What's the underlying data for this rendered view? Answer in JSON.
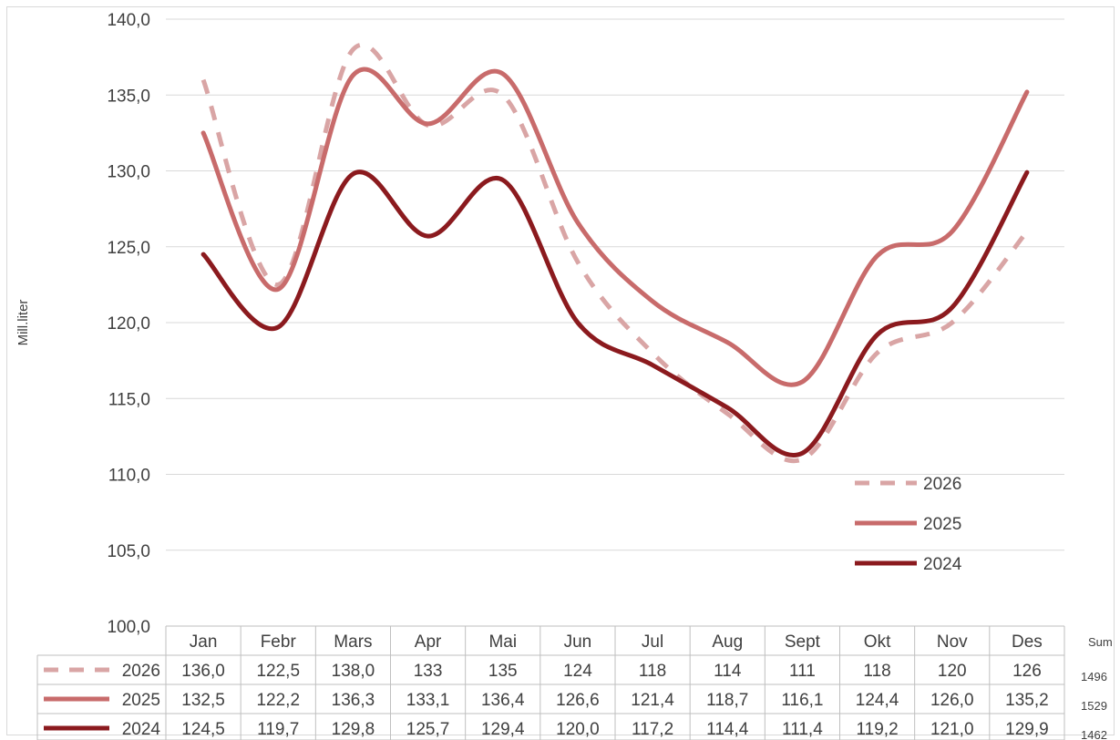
{
  "chart_data": {
    "type": "line",
    "ylabel": "Mill.liter",
    "ylim": [
      100,
      140
    ],
    "ytick_step": 5,
    "ytick_labels": [
      "100,0",
      "105,0",
      "110,0",
      "115,0",
      "120,0",
      "125,0",
      "130,0",
      "135,0",
      "140,0"
    ],
    "categories": [
      "Jan",
      "Febr",
      "Mars",
      "Apr",
      "Mai",
      "Jun",
      "Jul",
      "Aug",
      "Sept",
      "Okt",
      "Nov",
      "Des"
    ],
    "grid": true,
    "legend_position": "bottom-right",
    "sum_header": "Sum",
    "series": [
      {
        "name": "2026",
        "style": "dashed",
        "color": "#d9a5a5",
        "values": [
          136.0,
          122.5,
          138.0,
          133,
          135,
          124,
          118,
          114,
          111,
          118,
          120,
          126
        ],
        "labels": [
          "136,0",
          "122,5",
          "138,0",
          "133",
          "135",
          "124",
          "118",
          "114",
          "111",
          "118",
          "120",
          "126"
        ],
        "sum": "1496"
      },
      {
        "name": "2025",
        "style": "solid",
        "color": "#c86b6b",
        "values": [
          132.5,
          122.2,
          136.3,
          133.1,
          136.4,
          126.6,
          121.4,
          118.7,
          116.1,
          124.4,
          126.0,
          135.2
        ],
        "labels": [
          "132,5",
          "122,2",
          "136,3",
          "133,1",
          "136,4",
          "126,6",
          "121,4",
          "118,7",
          "116,1",
          "124,4",
          "126,0",
          "135,2"
        ],
        "sum": "1529"
      },
      {
        "name": "2024",
        "style": "solid",
        "color": "#8b1a1e",
        "values": [
          124.5,
          119.7,
          129.8,
          125.7,
          129.4,
          120.0,
          117.2,
          114.4,
          111.4,
          119.2,
          121.0,
          129.9
        ],
        "labels": [
          "124,5",
          "119,7",
          "129,8",
          "125,7",
          "129,4",
          "120,0",
          "117,2",
          "114,4",
          "111,4",
          "119,2",
          "121,0",
          "129,9"
        ],
        "sum": "1462"
      }
    ]
  }
}
